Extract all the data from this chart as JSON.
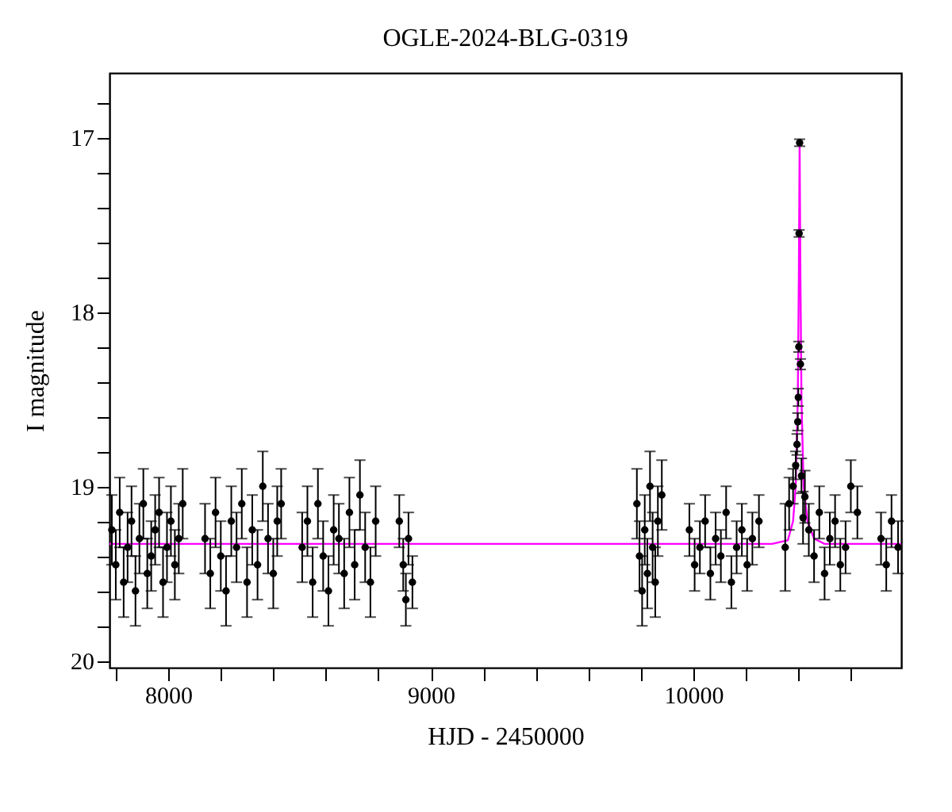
{
  "chart_data": {
    "type": "scatter",
    "title": "OGLE-2024-BLG-0319",
    "xlabel": "HJD - 2450000",
    "ylabel": "I magnitude",
    "xlim": [
      7776,
      10792
    ],
    "ylim": [
      20.04,
      16.63
    ],
    "xticks": [
      {
        "value": 7800,
        "label": null
      },
      8000,
      {
        "value": 8200,
        "label": null
      },
      {
        "value": 8400,
        "label": null
      },
      {
        "value": 8600,
        "label": null
      },
      {
        "value": 8800,
        "label": null
      },
      9000,
      {
        "value": 9200,
        "label": null
      },
      {
        "value": 9400,
        "label": null
      },
      {
        "value": 9600,
        "label": null
      },
      {
        "value": 9800,
        "label": null
      },
      10000,
      {
        "value": 10200,
        "label": null
      },
      {
        "value": 10400,
        "label": null
      },
      {
        "value": 10600,
        "label": null
      }
    ],
    "yticks": [
      {
        "value": 16.8,
        "label": null
      },
      17,
      {
        "value": 17.2,
        "label": null
      },
      {
        "value": 17.4,
        "label": null
      },
      {
        "value": 17.6,
        "label": null
      },
      {
        "value": 17.8,
        "label": null
      },
      18,
      {
        "value": 18.2,
        "label": null
      },
      {
        "value": 18.4,
        "label": null
      },
      {
        "value": 18.6,
        "label": null
      },
      {
        "value": 18.8,
        "label": null
      },
      19,
      {
        "value": 19.2,
        "label": null
      },
      {
        "value": 19.4,
        "label": null
      },
      {
        "value": 19.6,
        "label": null
      },
      {
        "value": 19.8,
        "label": null
      },
      20
    ],
    "grid": false,
    "marker": "circle",
    "series": [
      {
        "color": "#000000",
        "x": [
          7785,
          7800,
          7815,
          7830,
          7845,
          7860,
          7875,
          7890,
          7905,
          7920,
          7935,
          7950,
          7965,
          7980,
          7995,
          8010,
          8025,
          8040,
          8055,
          8140,
          8160,
          8180,
          8200,
          8220,
          8240,
          8260,
          8280,
          8300,
          8320,
          8340,
          8360,
          8380,
          8400,
          8415,
          8430,
          8510,
          8530,
          8550,
          8570,
          8590,
          8610,
          8630,
          8650,
          8670,
          8690,
          8710,
          8730,
          8750,
          8770,
          8790,
          8880,
          8895,
          8905,
          8915,
          8930,
          9785,
          9795,
          9805,
          9815,
          9825,
          9835,
          9845,
          9855,
          9865,
          9880,
          9985,
          10005,
          10025,
          10045,
          10065,
          10085,
          10105,
          10125,
          10145,
          10165,
          10185,
          10205,
          10225,
          10250,
          10350,
          10365,
          10380,
          10390,
          10395,
          10398,
          10400,
          10402,
          10403,
          10405,
          10408,
          10412,
          10418,
          10425,
          10440,
          10460,
          10480,
          10500,
          10520,
          10540,
          10560,
          10580,
          10600,
          10625,
          10715,
          10735,
          10755,
          10780
        ],
        "values": [
          19.25,
          19.45,
          19.15,
          19.55,
          19.35,
          19.2,
          19.6,
          19.3,
          19.1,
          19.5,
          19.4,
          19.25,
          19.15,
          19.55,
          19.35,
          19.2,
          19.45,
          19.3,
          19.1,
          19.3,
          19.5,
          19.15,
          19.4,
          19.6,
          19.2,
          19.35,
          19.1,
          19.55,
          19.25,
          19.45,
          19.0,
          19.3,
          19.5,
          19.2,
          19.1,
          19.35,
          19.2,
          19.55,
          19.1,
          19.4,
          19.6,
          19.25,
          19.3,
          19.5,
          19.15,
          19.45,
          19.05,
          19.35,
          19.55,
          19.2,
          19.2,
          19.45,
          19.65,
          19.3,
          19.55,
          19.1,
          19.4,
          19.6,
          19.25,
          19.5,
          19.0,
          19.35,
          19.55,
          19.2,
          19.05,
          19.25,
          19.45,
          19.35,
          19.2,
          19.5,
          19.3,
          19.4,
          19.15,
          19.55,
          19.35,
          19.25,
          19.45,
          19.3,
          19.2,
          19.35,
          19.1,
          19.0,
          18.88,
          18.76,
          18.63,
          18.49,
          18.2,
          17.55,
          17.03,
          18.3,
          18.94,
          19.18,
          19.06,
          19.25,
          19.4,
          19.15,
          19.5,
          19.3,
          19.2,
          19.45,
          19.35,
          19.0,
          19.15,
          19.3,
          19.45,
          19.2,
          19.35
        ],
        "errors": [
          0.2,
          0.2,
          0.2,
          0.2,
          0.2,
          0.2,
          0.2,
          0.2,
          0.2,
          0.2,
          0.2,
          0.2,
          0.2,
          0.2,
          0.2,
          0.2,
          0.2,
          0.2,
          0.2,
          0.2,
          0.2,
          0.2,
          0.2,
          0.2,
          0.2,
          0.2,
          0.2,
          0.2,
          0.2,
          0.2,
          0.2,
          0.2,
          0.2,
          0.2,
          0.2,
          0.2,
          0.2,
          0.2,
          0.2,
          0.2,
          0.2,
          0.2,
          0.2,
          0.2,
          0.2,
          0.2,
          0.2,
          0.2,
          0.2,
          0.2,
          0.15,
          0.15,
          0.15,
          0.15,
          0.15,
          0.2,
          0.2,
          0.2,
          0.2,
          0.2,
          0.2,
          0.2,
          0.2,
          0.2,
          0.2,
          0.15,
          0.15,
          0.15,
          0.15,
          0.15,
          0.15,
          0.15,
          0.15,
          0.15,
          0.15,
          0.15,
          0.15,
          0.15,
          0.15,
          0.25,
          0.15,
          0.1,
          0.08,
          0.06,
          0.05,
          0.05,
          0.03,
          0.02,
          0.02,
          0.03,
          0.1,
          0.15,
          0.15,
          0.15,
          0.15,
          0.15,
          0.15,
          0.15,
          0.15,
          0.15,
          0.15,
          0.15,
          0.15,
          0.15,
          0.15,
          0.15,
          0.15
        ]
      },
      {
        "type": "line",
        "color": "#ff00ff",
        "marker": "none",
        "x": [
          7776,
          10300,
          10360,
          10380,
          10390,
          10398,
          10402,
          10405,
          10408,
          10412,
          10420,
          10435,
          10460,
          10500,
          10792
        ],
        "values": [
          19.33,
          19.33,
          19.31,
          19.2,
          19.0,
          18.5,
          17.8,
          17.03,
          17.8,
          18.5,
          19.0,
          19.2,
          19.3,
          19.33,
          19.33
        ]
      }
    ]
  }
}
